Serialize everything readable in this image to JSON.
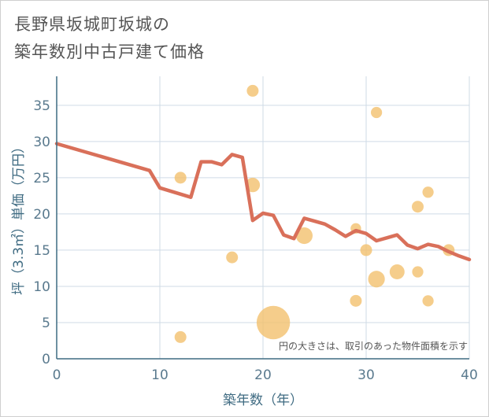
{
  "chart_data": {
    "type": "scatter",
    "title": [
      "長野県坂城町坂城の",
      "築年数別中古戸建て価格"
    ],
    "xlabel": "築年数（年）",
    "ylabel": "坪（3.3㎡）単価（万円）",
    "xlim": [
      0,
      40
    ],
    "ylim": [
      0,
      39
    ],
    "xticks": [
      0,
      10,
      20,
      30,
      40
    ],
    "yticks": [
      0,
      5,
      10,
      15,
      20,
      25,
      30,
      35
    ],
    "note": "円の大きさは、取引のあった物件面積を示す",
    "colors": {
      "bubble": "#f2c16e",
      "line": "#d9705a",
      "grid": "#cfdbe6",
      "axis": "#3f6b82"
    },
    "points": [
      {
        "x": 12,
        "y": 25,
        "size": 1
      },
      {
        "x": 12,
        "y": 3,
        "size": 1
      },
      {
        "x": 17,
        "y": 14,
        "size": 1
      },
      {
        "x": 19,
        "y": 37,
        "size": 1
      },
      {
        "x": 19,
        "y": 24,
        "size": 1.5
      },
      {
        "x": 21,
        "y": 5,
        "size": 8
      },
      {
        "x": 24,
        "y": 17,
        "size": 2
      },
      {
        "x": 29,
        "y": 18,
        "size": 0.8
      },
      {
        "x": 29,
        "y": 8,
        "size": 1
      },
      {
        "x": 30,
        "y": 15,
        "size": 1
      },
      {
        "x": 31,
        "y": 34,
        "size": 0.9
      },
      {
        "x": 31,
        "y": 11,
        "size": 2
      },
      {
        "x": 33,
        "y": 12,
        "size": 1.6
      },
      {
        "x": 35,
        "y": 21,
        "size": 1
      },
      {
        "x": 35,
        "y": 12,
        "size": 0.9
      },
      {
        "x": 36,
        "y": 23,
        "size": 0.9
      },
      {
        "x": 36,
        "y": 8,
        "size": 0.9
      },
      {
        "x": 38,
        "y": 15,
        "size": 1
      }
    ],
    "line": {
      "x": [
        0,
        9,
        10,
        13,
        14,
        15,
        16,
        17,
        18,
        19,
        20,
        21,
        22,
        23,
        24,
        25,
        26,
        27,
        28,
        29,
        30,
        31,
        32,
        33,
        34,
        35,
        36,
        37,
        38,
        39,
        40
      ],
      "y": [
        29.7,
        26.0,
        23.6,
        22.3,
        27.2,
        27.2,
        26.8,
        28.2,
        27.8,
        19.1,
        20.1,
        19.8,
        17.1,
        16.6,
        19.4,
        19.0,
        18.6,
        17.8,
        16.9,
        17.7,
        17.3,
        16.3,
        16.7,
        17.1,
        15.7,
        15.2,
        15.8,
        15.5,
        14.8,
        14.2,
        13.7
      ]
    }
  }
}
